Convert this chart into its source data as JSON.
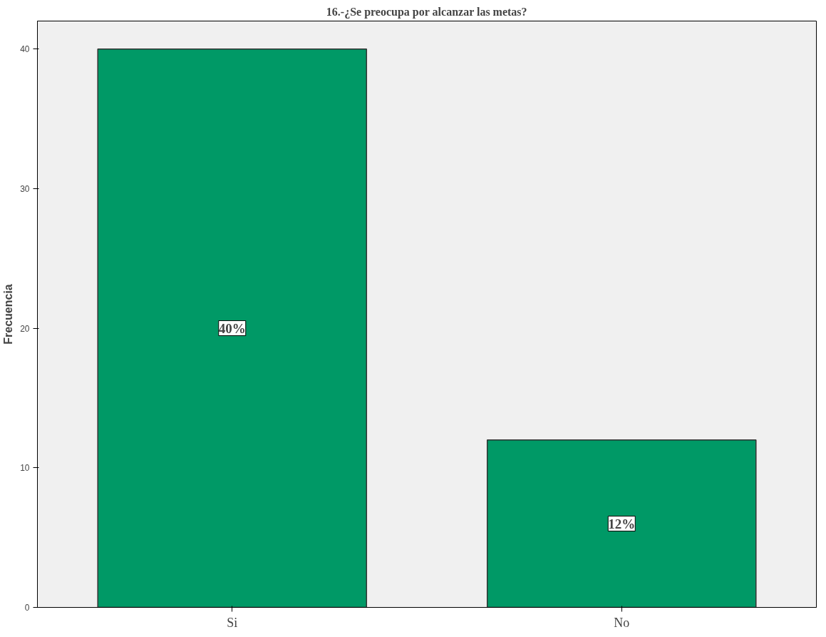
{
  "chart_data": {
    "type": "bar",
    "title": "16.-¿Se preocupa por alcanzar las metas?",
    "ylabel": "Frecuencia",
    "categories": [
      "Si",
      "No"
    ],
    "values": [
      40,
      12
    ],
    "value_labels": [
      "40%",
      "12%"
    ],
    "color": "#009966",
    "ylim": [
      0,
      42
    ],
    "yticks": [
      0,
      10,
      20,
      30,
      40
    ],
    "grid": false
  }
}
